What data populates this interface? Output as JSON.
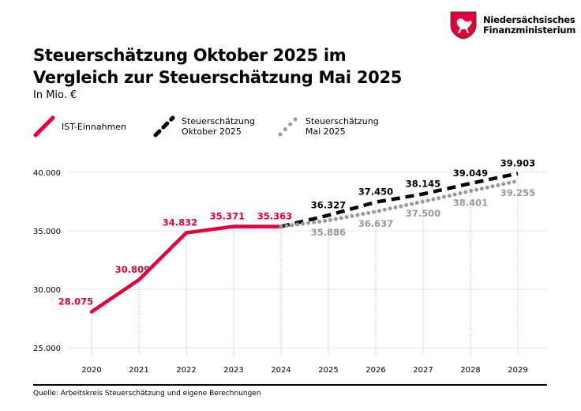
{
  "header": {
    "title_line1": "Steuerschätzung Oktober 2025 im",
    "title_line2": "Vergleich zur Steuerschätzung Mai 2025",
    "subtitle": "In Mio. €"
  },
  "logo": {
    "line1": "Niedersächsisches",
    "line2": "Finanzministerium",
    "icon": "lower-saxony-horse-crest"
  },
  "source": "Quelle: Arbeitskreis Steuerschätzung und eigene Berechnungen",
  "colors": {
    "ist": "#e2003c",
    "oktober": "#000000",
    "mai": "#999999",
    "grid": "#e5e5e5"
  },
  "chart_data": {
    "type": "line",
    "x": [
      2020,
      2021,
      2022,
      2023,
      2024,
      2025,
      2026,
      2027,
      2028,
      2029
    ],
    "xticklabels": [
      "2020",
      "2021",
      "2022",
      "2023",
      "2024",
      "2025",
      "2026",
      "2027",
      "2028",
      "2029"
    ],
    "ylim": [
      25000,
      40000
    ],
    "yticks": [
      25000,
      30000,
      35000,
      40000
    ],
    "yticklabels": [
      "25.000",
      "30.000",
      "35.000",
      "40.000"
    ],
    "grid": "horizontal",
    "legend_placement": "top-left",
    "series": [
      {
        "name": "IST-Einnahmen",
        "style": "solid",
        "x": [
          2020,
          2021,
          2022,
          2023,
          2024
        ],
        "values": [
          28075,
          30809,
          34832,
          35371,
          35363
        ],
        "labels": [
          "28.075",
          "30.809",
          "34.832",
          "35.371",
          "35.363"
        ]
      },
      {
        "name": "Steuerschätzung Oktober 2025",
        "legend_line1": "Steuerschätzung",
        "legend_line2": "Oktober 2025",
        "style": "dashed",
        "x": [
          2024,
          2025,
          2026,
          2027,
          2028,
          2029
        ],
        "values": [
          35363,
          36327,
          37450,
          38145,
          39049,
          39903
        ],
        "labels": [
          "",
          "36.327",
          "37.450",
          "38.145",
          "39.049",
          "39.903"
        ]
      },
      {
        "name": "Steuerschätzung Mai 2025",
        "legend_line1": "Steuerschätzung",
        "legend_line2": "Mai 2025",
        "style": "dotted",
        "x": [
          2024,
          2025,
          2026,
          2027,
          2028,
          2029
        ],
        "values": [
          35363,
          35886,
          36637,
          37500,
          38401,
          39255
        ],
        "labels": [
          "",
          "35.886",
          "36.637",
          "37.500",
          "38.401",
          "39.255"
        ]
      }
    ]
  }
}
